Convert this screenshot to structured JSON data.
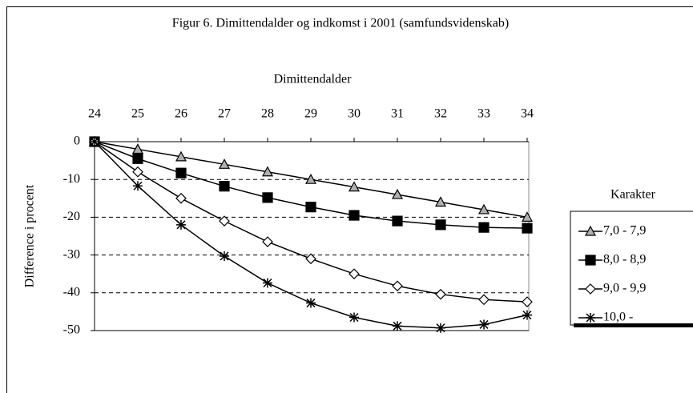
{
  "chart_data": {
    "type": "line",
    "title": "Figur 6. Dimittendalder og indkomst i 2001 (samfundsvidenskab)",
    "x_label": "Dimittendalder",
    "y_label": "Difference i procent",
    "x": [
      24,
      25,
      26,
      27,
      28,
      29,
      30,
      31,
      32,
      33,
      34
    ],
    "xlim": [
      24,
      34
    ],
    "xticks": [
      24,
      25,
      26,
      27,
      28,
      29,
      30,
      31,
      32,
      33,
      34
    ],
    "ylim": [
      -50,
      0
    ],
    "yticks": [
      0,
      -10,
      -20,
      -30,
      -40,
      -50
    ],
    "grid": true,
    "legend_title": "Karakter",
    "legend": "right",
    "series": [
      {
        "name": "7,0 - 7,9",
        "color": "#000000",
        "marker": "triangle",
        "marker_fill": "#b0b0b0",
        "values": [
          0,
          -2,
          -4,
          -6,
          -8,
          -10,
          -12,
          -14,
          -16,
          -18,
          -20
        ]
      },
      {
        "name": "8,0 - 8,9",
        "color": "#000000",
        "marker": "square",
        "marker_fill": "#000000",
        "values": [
          0,
          -4.5,
          -8.3,
          -11.8,
          -14.8,
          -17.3,
          -19.5,
          -21,
          -22,
          -22.7,
          -22.9
        ]
      },
      {
        "name": "9,0 - 9,9",
        "color": "#000000",
        "marker": "diamond",
        "marker_fill": "#ffffff",
        "values": [
          0,
          -8,
          -15,
          -21,
          -26.5,
          -31,
          -35,
          -38.2,
          -40.4,
          -41.8,
          -42.4
        ]
      },
      {
        "name": "10,0 -",
        "color": "#000000",
        "marker": "star",
        "marker_fill": "#000000",
        "values": [
          0,
          -11.7,
          -22,
          -30.3,
          -37.4,
          -42.7,
          -46.5,
          -48.8,
          -49.3,
          -48.4,
          -45.9
        ]
      }
    ]
  }
}
